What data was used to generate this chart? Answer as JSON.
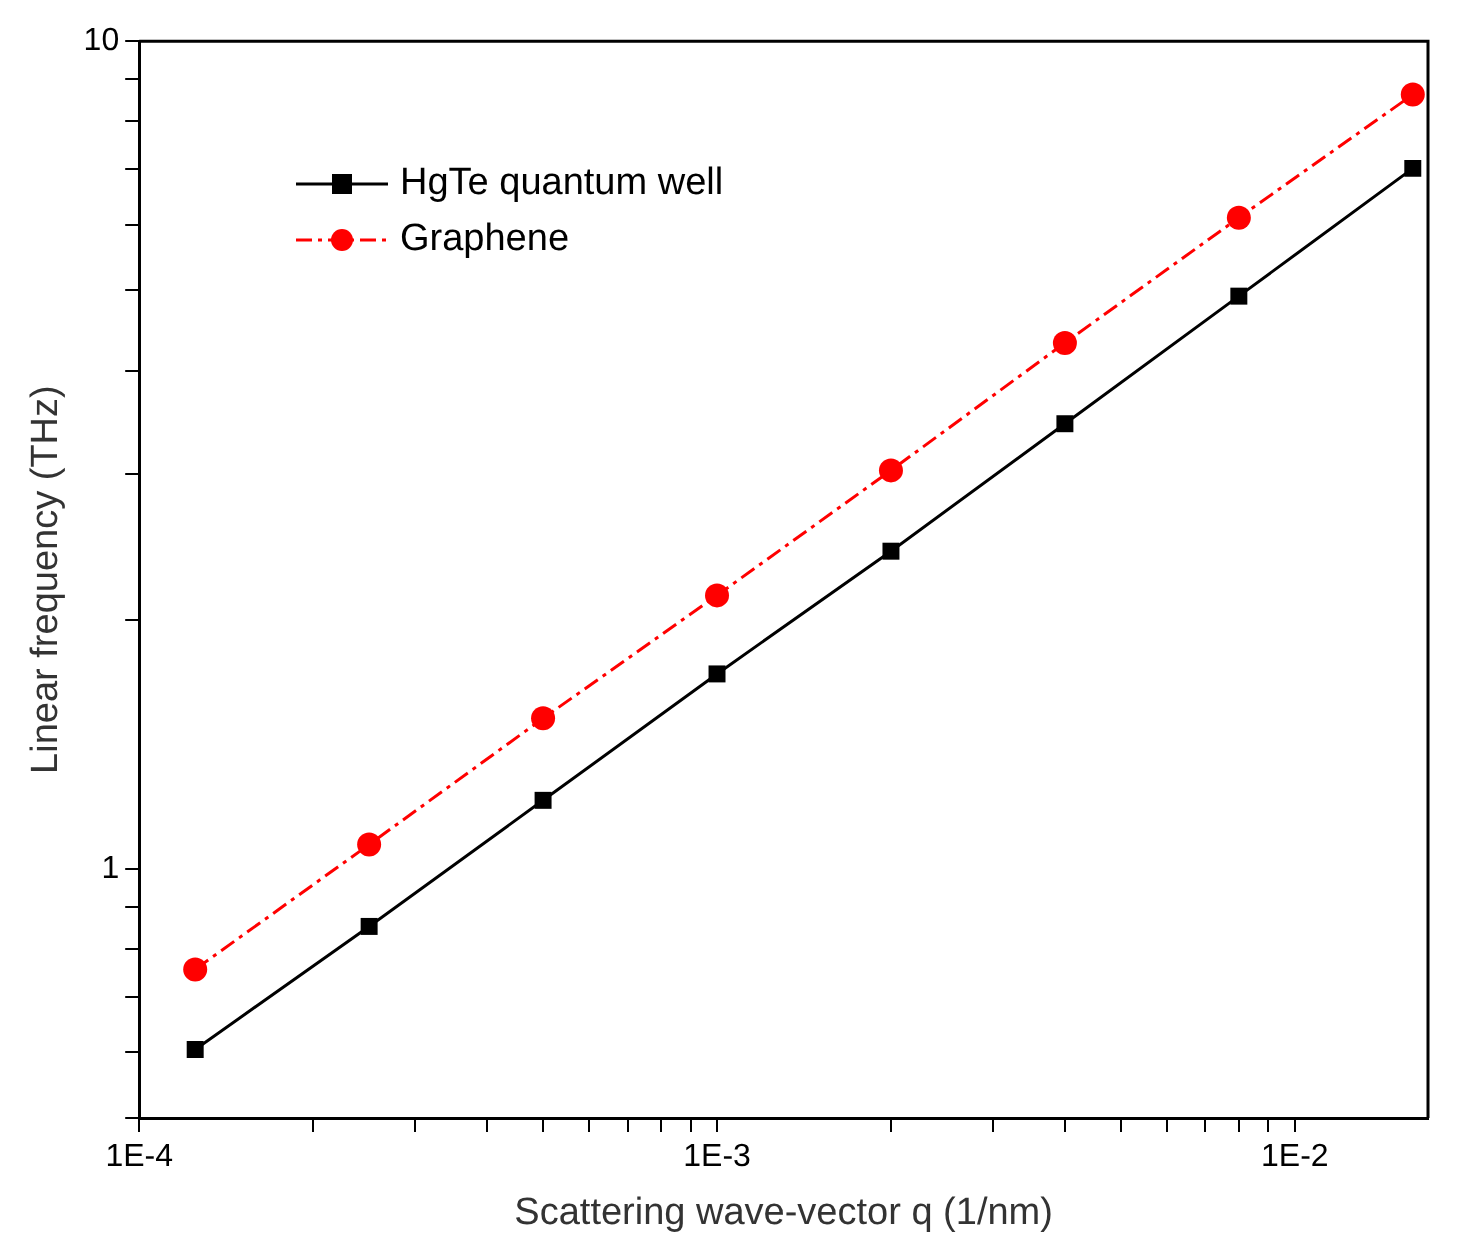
{
  "chart_data": {
    "type": "line",
    "xlabel": "Scattering wave-vector q (1/nm)",
    "ylabel": "Linear frequency (THz)",
    "x": [
      0.000125,
      0.00025,
      0.0005,
      0.001,
      0.002,
      0.004,
      0.008,
      0.016
    ],
    "series": [
      {
        "name": "HgTe quantum well",
        "color": "#000000",
        "marker": "square",
        "line_style": "solid",
        "values": [
          0.605,
          0.852,
          1.21,
          1.72,
          2.42,
          3.45,
          4.92,
          7.02
        ]
      },
      {
        "name": "Graphene",
        "color": "#ff0000",
        "marker": "circle",
        "line_style": "dashed",
        "values": [
          0.756,
          1.07,
          1.52,
          2.14,
          3.03,
          4.32,
          6.12,
          8.62
        ]
      }
    ],
    "log": "xy",
    "grid": false,
    "legend": "top left",
    "xlim": [
      0.0001,
      0.017
    ],
    "ylim": [
      0.5,
      10
    ],
    "xticks": [
      {
        "value": 0.0001,
        "label": "1E-4"
      },
      {
        "value": 0.0002,
        "label": null
      },
      {
        "value": 0.0003,
        "label": null
      },
      {
        "value": 0.0004,
        "label": null
      },
      {
        "value": 0.0005,
        "label": null
      },
      {
        "value": 0.0006,
        "label": null
      },
      {
        "value": 0.0007,
        "label": null
      },
      {
        "value": 0.0008,
        "label": null
      },
      {
        "value": 0.0009,
        "label": null
      },
      {
        "value": 0.001,
        "label": "1E-3"
      },
      {
        "value": 0.002,
        "label": null
      },
      {
        "value": 0.003,
        "label": null
      },
      {
        "value": 0.004,
        "label": null
      },
      {
        "value": 0.005,
        "label": null
      },
      {
        "value": 0.006,
        "label": null
      },
      {
        "value": 0.007,
        "label": null
      },
      {
        "value": 0.008,
        "label": null
      },
      {
        "value": 0.009,
        "label": null
      },
      {
        "value": 0.01,
        "label": "1E-2"
      }
    ],
    "yticks": [
      {
        "value": 0.5,
        "label": null
      },
      {
        "value": 0.6,
        "label": null
      },
      {
        "value": 0.7,
        "label": null
      },
      {
        "value": 0.8,
        "label": null
      },
      {
        "value": 0.9,
        "label": null
      },
      1,
      {
        "value": 2,
        "label": null
      },
      {
        "value": 3,
        "label": null
      },
      {
        "value": 4,
        "label": null
      },
      {
        "value": 5,
        "label": null
      },
      {
        "value": 6,
        "label": null
      },
      {
        "value": 7,
        "label": null
      },
      {
        "value": 8,
        "label": null
      },
      {
        "value": 9,
        "label": null
      },
      10
    ]
  }
}
